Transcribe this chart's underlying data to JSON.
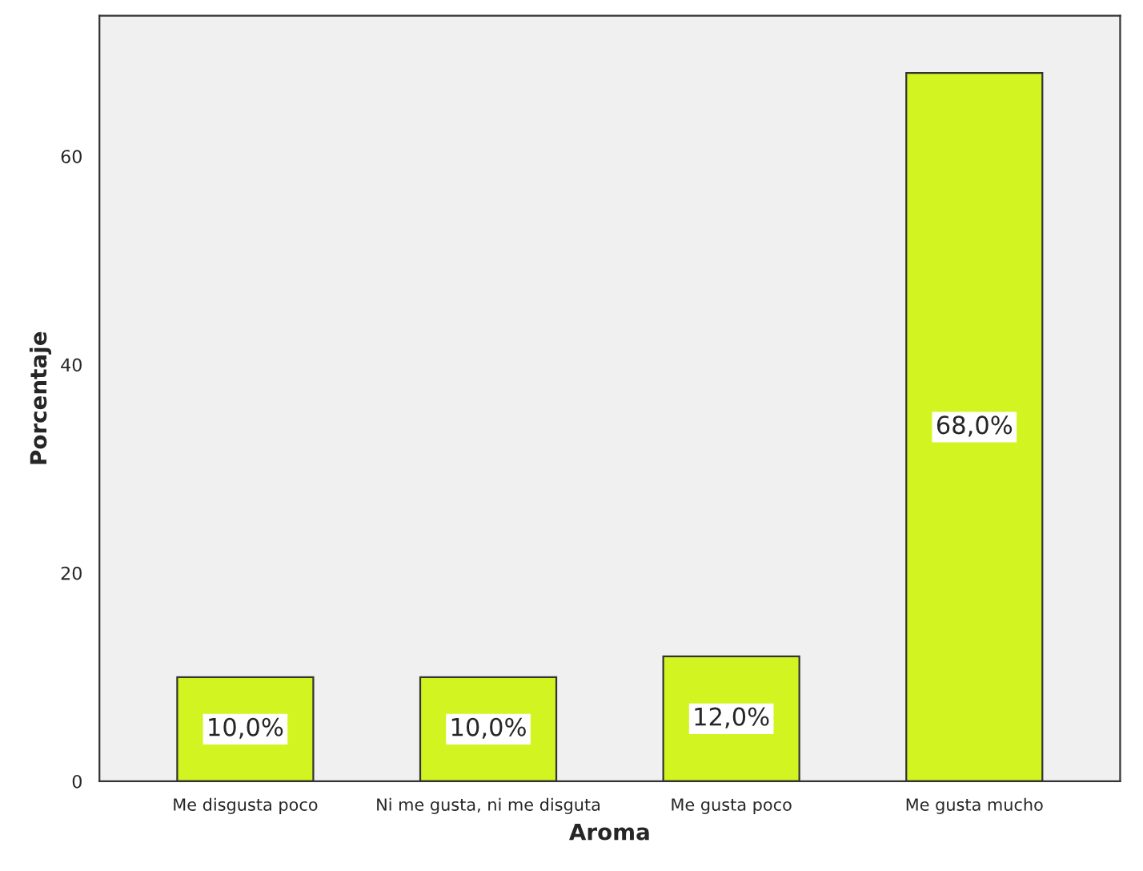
{
  "chart_data": {
    "type": "bar",
    "xlabel": "Aroma",
    "ylabel": "Porcentaje",
    "categories": [
      "Me disgusta poco",
      "Ni me gusta, ni me disguta",
      "Me gusta poco",
      "Me gusta mucho"
    ],
    "values": [
      10.0,
      10.0,
      12.0,
      68.0
    ],
    "value_labels": [
      "10,0%",
      "10,0%",
      "12,0%",
      "68,0%"
    ],
    "color": "#d2f521",
    "ylim": [
      0,
      73.5
    ],
    "yticks": [
      0,
      20,
      40,
      60
    ],
    "grid": false
  }
}
